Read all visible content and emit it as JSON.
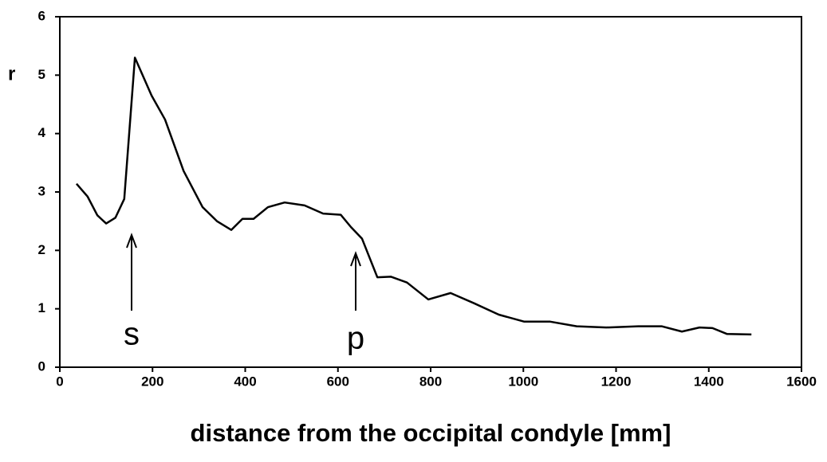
{
  "chart_data": {
    "type": "line",
    "x_label": "distance from the occipital condyle [mm]",
    "y_label": "r",
    "annotations": [
      "s",
      "p"
    ],
    "x": [
      36,
      60,
      81,
      100,
      120,
      139,
      162,
      198,
      227,
      267,
      308,
      339,
      370,
      394,
      418,
      449,
      485,
      528,
      568,
      606,
      628,
      652,
      685,
      714,
      749,
      795,
      843,
      895,
      947,
      1002,
      1058,
      1115,
      1179,
      1248,
      1299,
      1342,
      1380,
      1408,
      1439,
      1492
    ],
    "series": [
      {
        "name": "r",
        "color": "#000000",
        "values": [
          3.14,
          2.92,
          2.6,
          2.46,
          2.56,
          2.88,
          5.3,
          4.65,
          4.24,
          3.36,
          2.74,
          2.5,
          2.35,
          2.54,
          2.54,
          2.74,
          2.82,
          2.77,
          2.63,
          2.61,
          2.4,
          2.2,
          1.54,
          1.55,
          1.45,
          1.16,
          1.27,
          1.09,
          0.9,
          0.78,
          0.78,
          0.7,
          0.68,
          0.7,
          0.7,
          0.61,
          0.68,
          0.67,
          0.57,
          0.56
        ]
      }
    ],
    "xlim": [
      0,
      1600
    ],
    "xticks": [
      0,
      200,
      400,
      600,
      800,
      1000,
      1200,
      1400,
      1600
    ],
    "ylim": [
      0,
      6
    ],
    "yticks": [
      0,
      1,
      2,
      3,
      4,
      5,
      6
    ]
  }
}
